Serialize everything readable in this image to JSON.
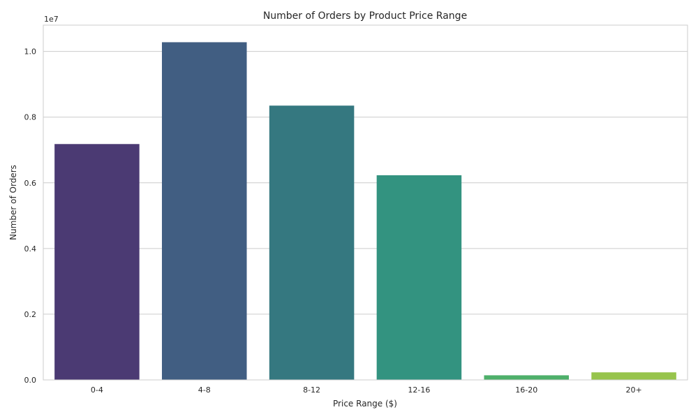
{
  "chart_data": {
    "type": "bar",
    "title": "Number of Orders by Product Price Range",
    "xlabel": "Price Range ($)",
    "ylabel": "Number of Orders",
    "y_scale_label": "1e7",
    "categories": [
      "0-4",
      "4-8",
      "8-12",
      "12-16",
      "16-20",
      "20+"
    ],
    "values": [
      7180000,
      10280000,
      8350000,
      6230000,
      140000,
      230000
    ],
    "colors": [
      "#4b3a73",
      "#415e82",
      "#357880",
      "#339380",
      "#4eb06a",
      "#97c44c"
    ],
    "ylim": [
      0,
      10800000
    ],
    "yticks": [
      0,
      2000000,
      4000000,
      6000000,
      8000000,
      10000000
    ],
    "ytick_labels": [
      "0.0",
      "0.2",
      "0.4",
      "0.6",
      "0.8",
      "1.0"
    ],
    "grid": true,
    "legend": "none"
  }
}
